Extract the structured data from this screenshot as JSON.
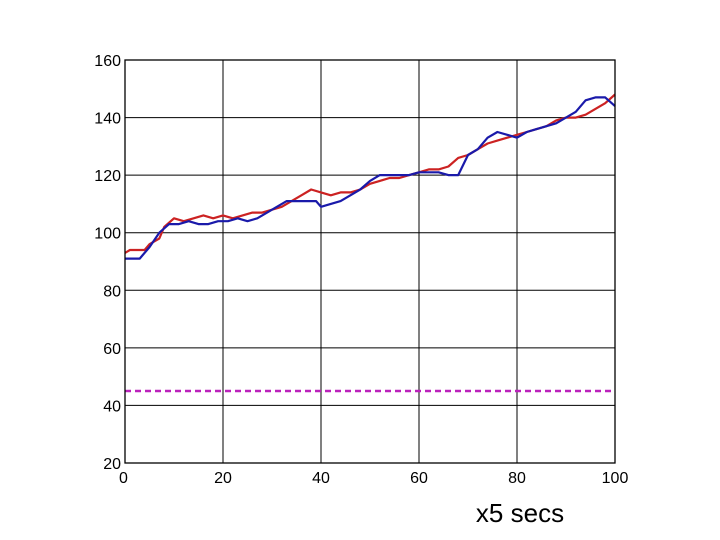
{
  "chart_data": {
    "type": "line",
    "title": "",
    "xlabel": "x5 secs",
    "ylabel": "",
    "xlim": [
      0,
      100
    ],
    "ylim": [
      20,
      160
    ],
    "xticks": [
      0,
      20,
      40,
      60,
      80,
      100
    ],
    "yticks": [
      20,
      40,
      60,
      80,
      100,
      120,
      140,
      160
    ],
    "grid": true,
    "series": [
      {
        "color": "#cc2222",
        "style": "solid",
        "x": [
          0,
          1,
          4,
          5,
          7,
          8,
          10,
          12,
          14,
          16,
          18,
          20,
          22,
          24,
          26,
          28,
          30,
          32,
          34,
          36,
          38,
          40,
          42,
          44,
          46,
          48,
          50,
          52,
          54,
          56,
          58,
          60,
          62,
          64,
          66,
          68,
          70,
          72,
          74,
          76,
          78,
          80,
          82,
          84,
          86,
          88,
          90,
          92,
          94,
          96,
          98,
          100
        ],
        "y": [
          93,
          94,
          94,
          96,
          98,
          102,
          105,
          104,
          105,
          106,
          105,
          106,
          105,
          106,
          107,
          107,
          108,
          109,
          111,
          113,
          115,
          114,
          113,
          114,
          114,
          115,
          117,
          118,
          119,
          119,
          120,
          121,
          122,
          122,
          123,
          126,
          127,
          129,
          131,
          132,
          133,
          134,
          135,
          136,
          137,
          139,
          140,
          140,
          141,
          143,
          145,
          148
        ]
      },
      {
        "color": "#1a1aaa",
        "style": "solid",
        "x": [
          0,
          1,
          3,
          5,
          7,
          9,
          11,
          13,
          15,
          17,
          19,
          21,
          23,
          25,
          27,
          29,
          31,
          33,
          35,
          37,
          39,
          40,
          42,
          44,
          46,
          48,
          50,
          52,
          54,
          56,
          58,
          60,
          62,
          64,
          66,
          68,
          70,
          72,
          74,
          76,
          78,
          80,
          82,
          84,
          86,
          88,
          90,
          92,
          94,
          96,
          98,
          100
        ],
        "y": [
          91,
          91,
          91,
          95,
          100,
          103,
          103,
          104,
          103,
          103,
          104,
          104,
          105,
          104,
          105,
          107,
          109,
          111,
          111,
          111,
          111,
          109,
          110,
          111,
          113,
          115,
          118,
          120,
          120,
          120,
          120,
          121,
          121,
          121,
          120,
          120,
          127,
          129,
          133,
          135,
          134,
          133,
          135,
          136,
          137,
          138,
          140,
          142,
          146,
          147,
          147,
          144
        ]
      },
      {
        "color": "#bb22bb",
        "style": "dashed",
        "x": [
          0,
          100
        ],
        "y": [
          45,
          45
        ]
      }
    ]
  }
}
